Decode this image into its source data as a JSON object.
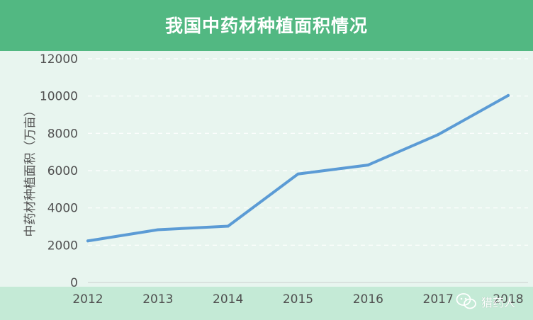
{
  "chart_data": {
    "type": "line",
    "title": "我国中药材种植面积情况",
    "ylabel": "中药材种植面积（万亩）",
    "xlabel": "",
    "categories": [
      "2012",
      "2013",
      "2014",
      "2015",
      "2016",
      "2017",
      "2018"
    ],
    "series": [
      {
        "values": [
          2230,
          2830,
          3020,
          5820,
          6300,
          7930,
          10030
        ]
      }
    ],
    "ylim": [
      0,
      12000
    ],
    "yticks": [
      0,
      2000,
      4000,
      6000,
      8000,
      10000,
      12000
    ],
    "grid": true,
    "legend": "none"
  },
  "colors": {
    "line": "#5b9bd5",
    "header": "#52b882",
    "plot_background": "#e8f5ef",
    "footer": "#c4ead6"
  },
  "watermark": {
    "icon": "wechat-icon",
    "text": "猎药人"
  }
}
